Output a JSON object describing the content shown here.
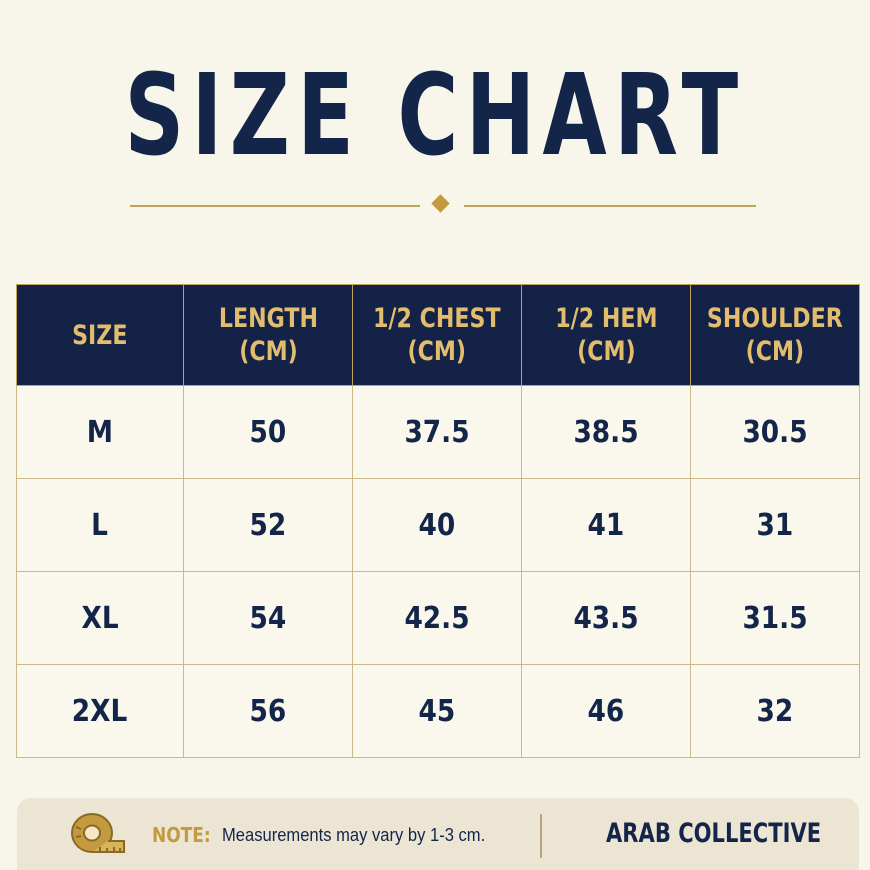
{
  "title": "SIZE CHART",
  "colors": {
    "navy": "#14254a",
    "gold": "#c39a3f",
    "background": "#f8f5ea"
  },
  "table": {
    "headers": [
      [
        "SIZE"
      ],
      [
        "LENGTH",
        "(CM)"
      ],
      [
        "1/2 CHEST",
        "(CM)"
      ],
      [
        "1/2 HEM",
        "(CM)"
      ],
      [
        "SHOULDER",
        "(CM)"
      ]
    ],
    "rows": [
      [
        "M",
        "50",
        "37.5",
        "38.5",
        "30.5"
      ],
      [
        "L",
        "52",
        "40",
        "41",
        "31"
      ],
      [
        "XL",
        "54",
        "42.5",
        "43.5",
        "31.5"
      ],
      [
        "2XL",
        "56",
        "45",
        "46",
        "32"
      ]
    ]
  },
  "footer": {
    "icon": "measuring-tape-icon",
    "note_label": "NOTE:",
    "note_text": "Measurements may vary by 1-3 cm.",
    "brand": "ARAB COLLECTIVE"
  }
}
